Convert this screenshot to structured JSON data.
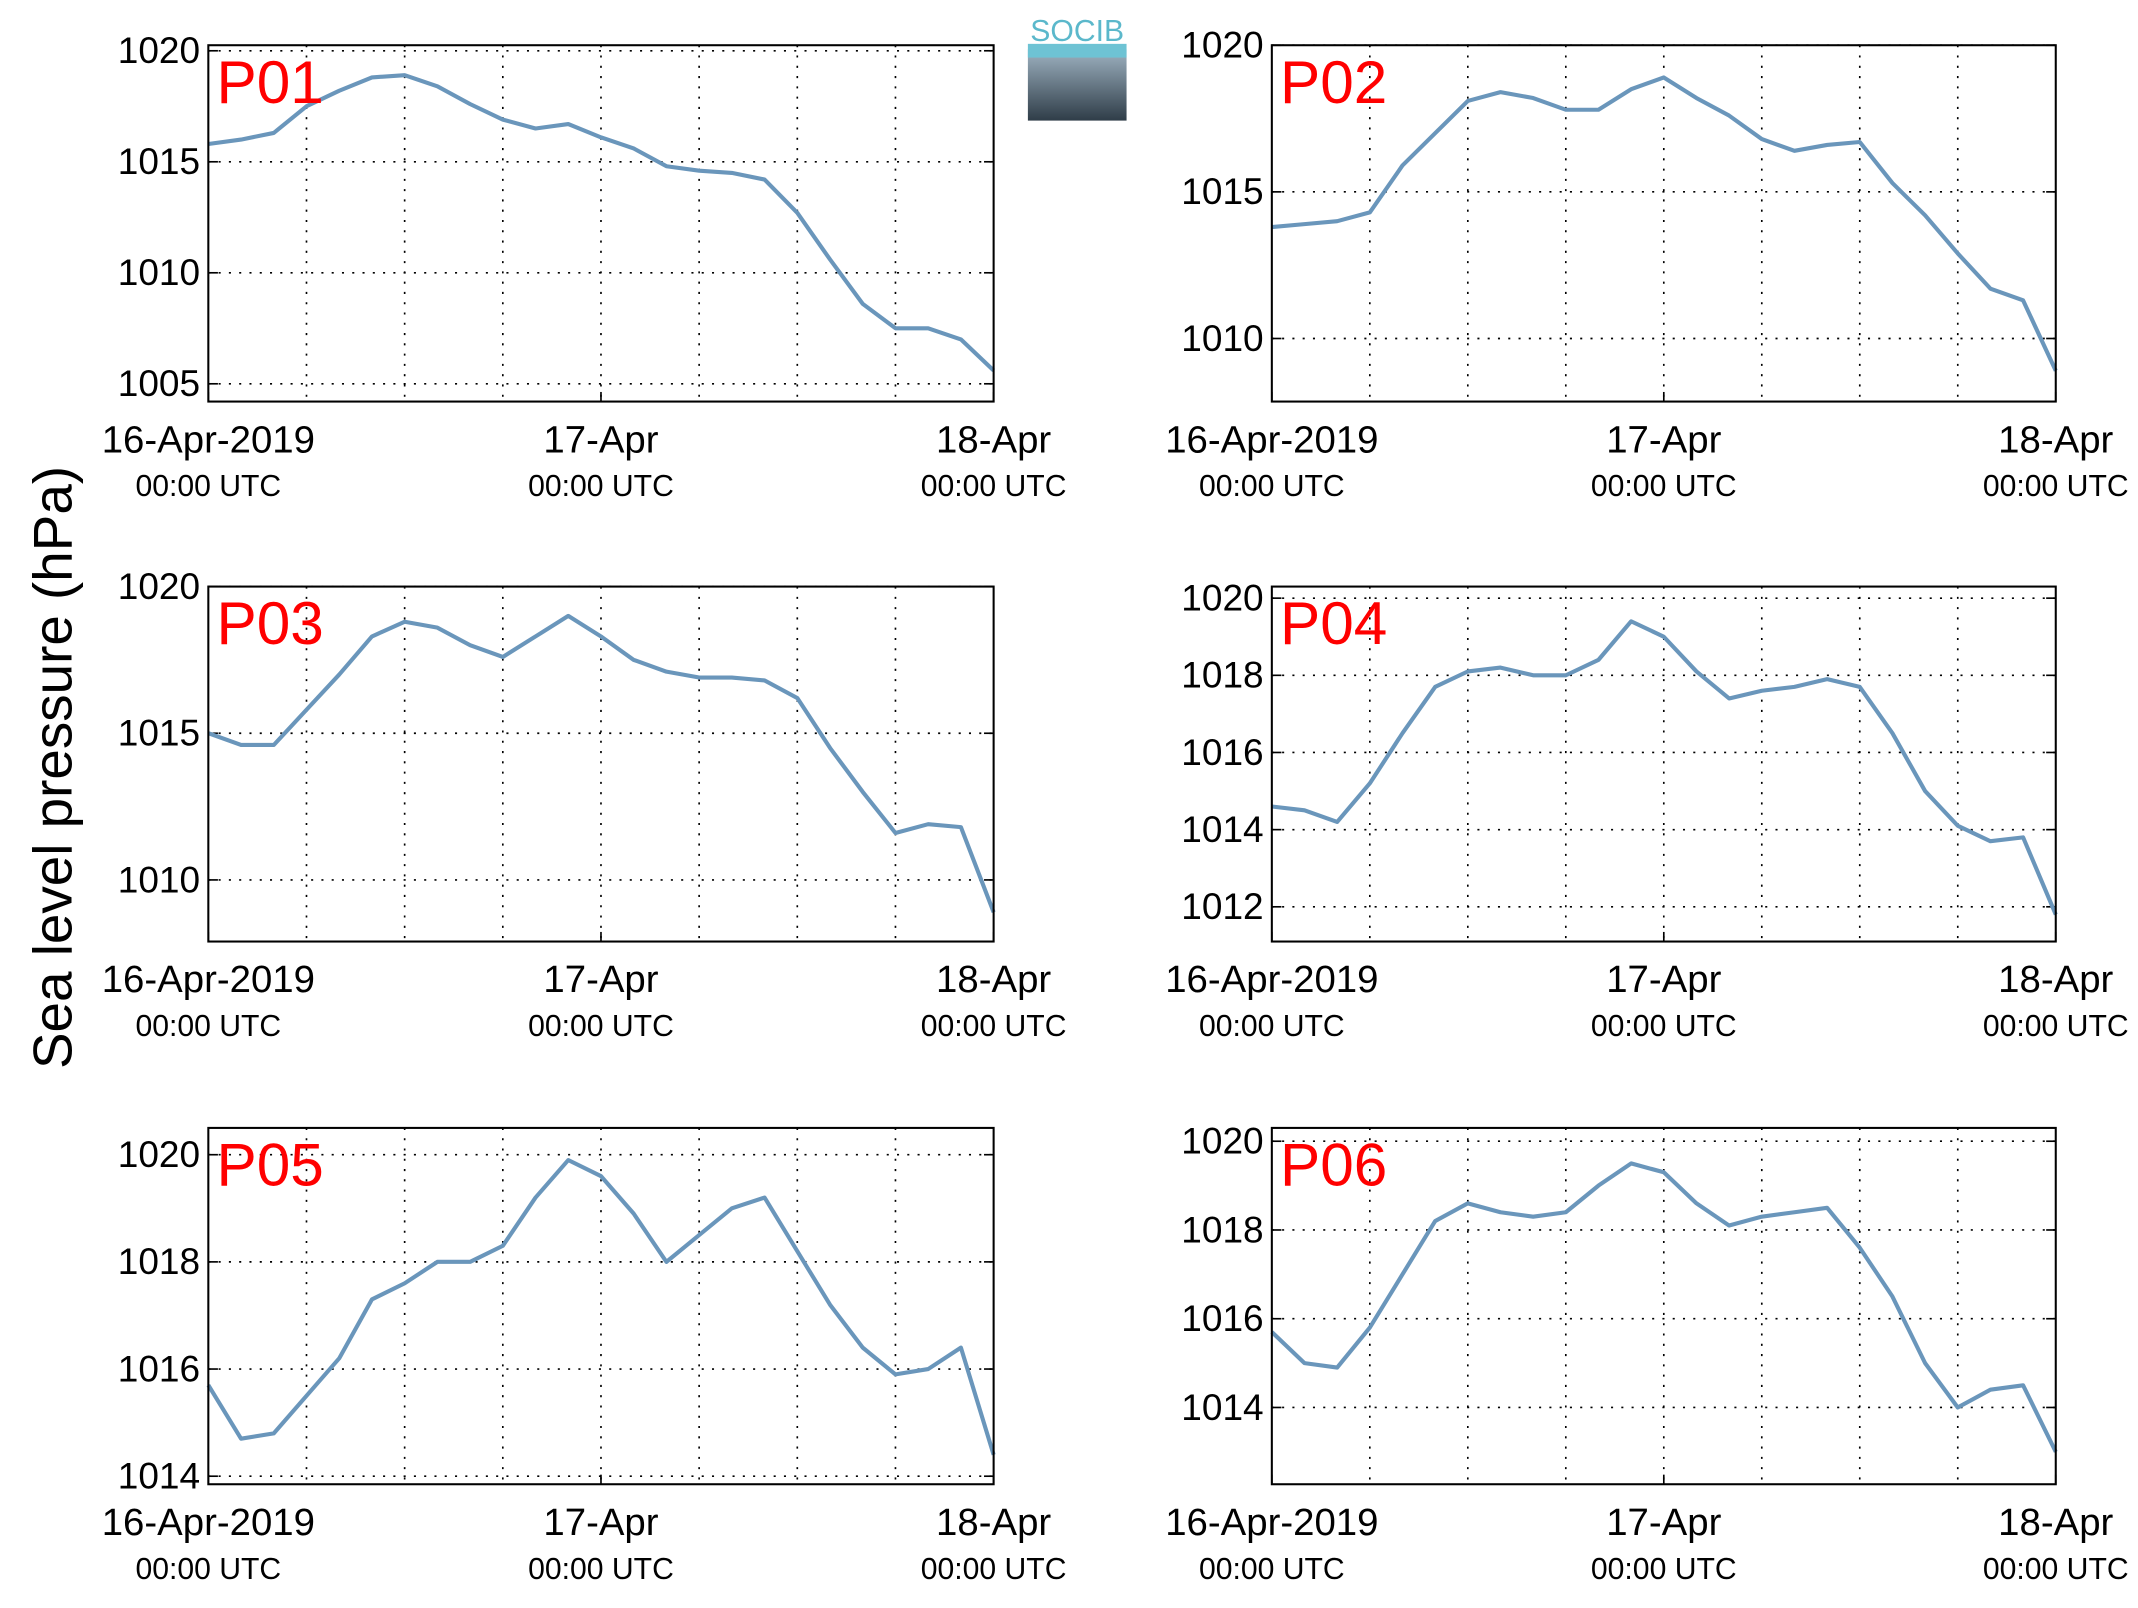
{
  "ylabel": "Sea level pressure (hPa)",
  "logo": "SOCIB",
  "chart_data": [
    {
      "type": "line",
      "title": "P01",
      "color": "#6a96bb",
      "grid": true,
      "x": [
        0,
        2,
        4,
        6,
        8,
        10,
        12,
        14,
        16,
        18,
        20,
        22,
        24,
        26,
        28,
        30,
        32,
        34,
        36,
        38,
        40,
        42,
        44,
        46,
        48
      ],
      "values": [
        1015.8,
        1016.0,
        1016.3,
        1017.5,
        1018.2,
        1018.8,
        1018.9,
        1018.4,
        1017.6,
        1016.9,
        1016.5,
        1016.7,
        1016.1,
        1015.6,
        1014.8,
        1014.6,
        1014.5,
        1014.2,
        1012.7,
        1010.6,
        1008.6,
        1007.5,
        1007.5,
        1007.0,
        1005.6
      ],
      "xlim": [
        0,
        48
      ],
      "xticks": [
        {
          "value": 0,
          "label": "16-Apr-2019",
          "sublabel": "00:00 UTC"
        },
        {
          "value": 24,
          "label": "17-Apr",
          "sublabel": "00:00 UTC"
        },
        {
          "value": 48,
          "label": "18-Apr",
          "sublabel": "00:00 UTC"
        }
      ],
      "xgrid": [
        6,
        12,
        18,
        24,
        30,
        36,
        42
      ],
      "ylim": [
        1004.2,
        1020.25
      ],
      "yticks": [
        1005,
        1010,
        1015,
        1020
      ]
    },
    {
      "type": "line",
      "title": "P02",
      "color": "#6a96bb",
      "grid": true,
      "x": [
        0,
        2,
        4,
        6,
        8,
        10,
        12,
        14,
        16,
        18,
        20,
        22,
        24,
        26,
        28,
        30,
        32,
        34,
        36,
        38,
        40,
        42,
        44,
        46,
        48
      ],
      "values": [
        1013.8,
        1013.9,
        1014.0,
        1014.3,
        1015.9,
        1017.0,
        1018.1,
        1018.4,
        1018.2,
        1017.8,
        1017.8,
        1018.5,
        1018.9,
        1018.2,
        1017.6,
        1016.8,
        1016.4,
        1016.6,
        1016.7,
        1015.3,
        1014.2,
        1012.9,
        1011.7,
        1011.3,
        1008.9
      ],
      "xlim": [
        0,
        48
      ],
      "xticks": [
        {
          "value": 0,
          "label": "16-Apr-2019",
          "sublabel": "00:00 UTC"
        },
        {
          "value": 24,
          "label": "17-Apr",
          "sublabel": "00:00 UTC"
        },
        {
          "value": 48,
          "label": "18-Apr",
          "sublabel": "00:00 UTC"
        }
      ],
      "xgrid": [
        6,
        12,
        18,
        24,
        30,
        36,
        42
      ],
      "ylim": [
        1007.85,
        1020
      ],
      "yticks": [
        1010,
        1015,
        1020
      ]
    },
    {
      "type": "line",
      "title": "P03",
      "color": "#6a96bb",
      "grid": true,
      "x": [
        0,
        2,
        4,
        6,
        8,
        10,
        12,
        14,
        16,
        18,
        20,
        22,
        24,
        26,
        28,
        30,
        32,
        34,
        36,
        38,
        40,
        42,
        44,
        46,
        48
      ],
      "values": [
        1015.0,
        1014.6,
        1014.6,
        1015.8,
        1017.0,
        1018.3,
        1018.8,
        1018.6,
        1018.0,
        1017.6,
        1018.3,
        1019.0,
        1018.3,
        1017.5,
        1017.1,
        1016.9,
        1016.9,
        1016.8,
        1016.2,
        1014.5,
        1013.0,
        1011.6,
        1011.9,
        1011.8,
        1008.9
      ],
      "xlim": [
        0,
        48
      ],
      "xticks": [
        {
          "value": 0,
          "label": "16-Apr-2019",
          "sublabel": "00:00 UTC"
        },
        {
          "value": 24,
          "label": "17-Apr",
          "sublabel": "00:00 UTC"
        },
        {
          "value": 48,
          "label": "18-Apr",
          "sublabel": "00:00 UTC"
        }
      ],
      "xgrid": [
        6,
        12,
        18,
        24,
        30,
        36,
        42
      ],
      "ylim": [
        1007.9,
        1020
      ],
      "yticks": [
        1010,
        1015,
        1020
      ]
    },
    {
      "type": "line",
      "title": "P04",
      "color": "#6a96bb",
      "grid": true,
      "x": [
        0,
        2,
        4,
        6,
        8,
        10,
        12,
        14,
        16,
        18,
        20,
        22,
        24,
        26,
        28,
        30,
        32,
        34,
        36,
        38,
        40,
        42,
        44,
        46,
        48
      ],
      "values": [
        1014.6,
        1014.5,
        1014.2,
        1015.2,
        1016.5,
        1017.7,
        1018.1,
        1018.2,
        1018.0,
        1018.0,
        1018.4,
        1019.4,
        1019.0,
        1018.1,
        1017.4,
        1017.6,
        1017.7,
        1017.9,
        1017.7,
        1016.5,
        1015.0,
        1014.1,
        1013.7,
        1013.8,
        1011.8
      ],
      "xlim": [
        0,
        48
      ],
      "xticks": [
        {
          "value": 0,
          "label": "16-Apr-2019",
          "sublabel": "00:00 UTC"
        },
        {
          "value": 24,
          "label": "17-Apr",
          "sublabel": "00:00 UTC"
        },
        {
          "value": 48,
          "label": "18-Apr",
          "sublabel": "00:00 UTC"
        }
      ],
      "xgrid": [
        6,
        12,
        18,
        24,
        30,
        36,
        42
      ],
      "ylim": [
        1011.1,
        1020.3
      ],
      "yticks": [
        1012,
        1014,
        1016,
        1018,
        1020
      ]
    },
    {
      "type": "line",
      "title": "P05",
      "color": "#6a96bb",
      "grid": true,
      "x": [
        0,
        2,
        4,
        6,
        8,
        10,
        12,
        14,
        16,
        18,
        20,
        22,
        24,
        26,
        28,
        30,
        32,
        34,
        36,
        38,
        40,
        42,
        44,
        46,
        48
      ],
      "values": [
        1015.7,
        1014.7,
        1014.8,
        1015.5,
        1016.2,
        1017.3,
        1017.6,
        1018.0,
        1018.0,
        1018.3,
        1019.2,
        1019.9,
        1019.6,
        1018.9,
        1018.0,
        1018.5,
        1019.0,
        1019.2,
        1018.2,
        1017.2,
        1016.4,
        1015.9,
        1016.0,
        1016.4,
        1014.4
      ],
      "xlim": [
        0,
        48
      ],
      "xticks": [
        {
          "value": 0,
          "label": "16-Apr-2019",
          "sublabel": "00:00 UTC"
        },
        {
          "value": 24,
          "label": "17-Apr",
          "sublabel": "00:00 UTC"
        },
        {
          "value": 48,
          "label": "18-Apr",
          "sublabel": "00:00 UTC"
        }
      ],
      "xgrid": [
        6,
        12,
        18,
        24,
        30,
        36,
        42
      ],
      "ylim": [
        1013.85,
        1020.5
      ],
      "yticks": [
        1014,
        1016,
        1018,
        1020
      ]
    },
    {
      "type": "line",
      "title": "P06",
      "color": "#6a96bb",
      "grid": true,
      "x": [
        0,
        2,
        4,
        6,
        8,
        10,
        12,
        14,
        16,
        18,
        20,
        22,
        24,
        26,
        28,
        30,
        32,
        34,
        36,
        38,
        40,
        42,
        44,
        46,
        48
      ],
      "values": [
        1015.7,
        1015.0,
        1014.9,
        1015.8,
        1017.0,
        1018.2,
        1018.6,
        1018.4,
        1018.3,
        1018.4,
        1019.0,
        1019.5,
        1019.3,
        1018.6,
        1018.1,
        1018.3,
        1018.4,
        1018.5,
        1017.6,
        1016.5,
        1015.0,
        1014.0,
        1014.4,
        1014.5,
        1013.0
      ],
      "xlim": [
        0,
        48
      ],
      "xticks": [
        {
          "value": 0,
          "label": "16-Apr-2019",
          "sublabel": "00:00 UTC"
        },
        {
          "value": 24,
          "label": "17-Apr",
          "sublabel": "00:00 UTC"
        },
        {
          "value": 48,
          "label": "18-Apr",
          "sublabel": "00:00 UTC"
        }
      ],
      "xgrid": [
        6,
        12,
        18,
        24,
        30,
        36,
        42
      ],
      "ylim": [
        1012.27,
        1020.3
      ],
      "yticks": [
        1014,
        1016,
        1018,
        1020
      ]
    }
  ]
}
